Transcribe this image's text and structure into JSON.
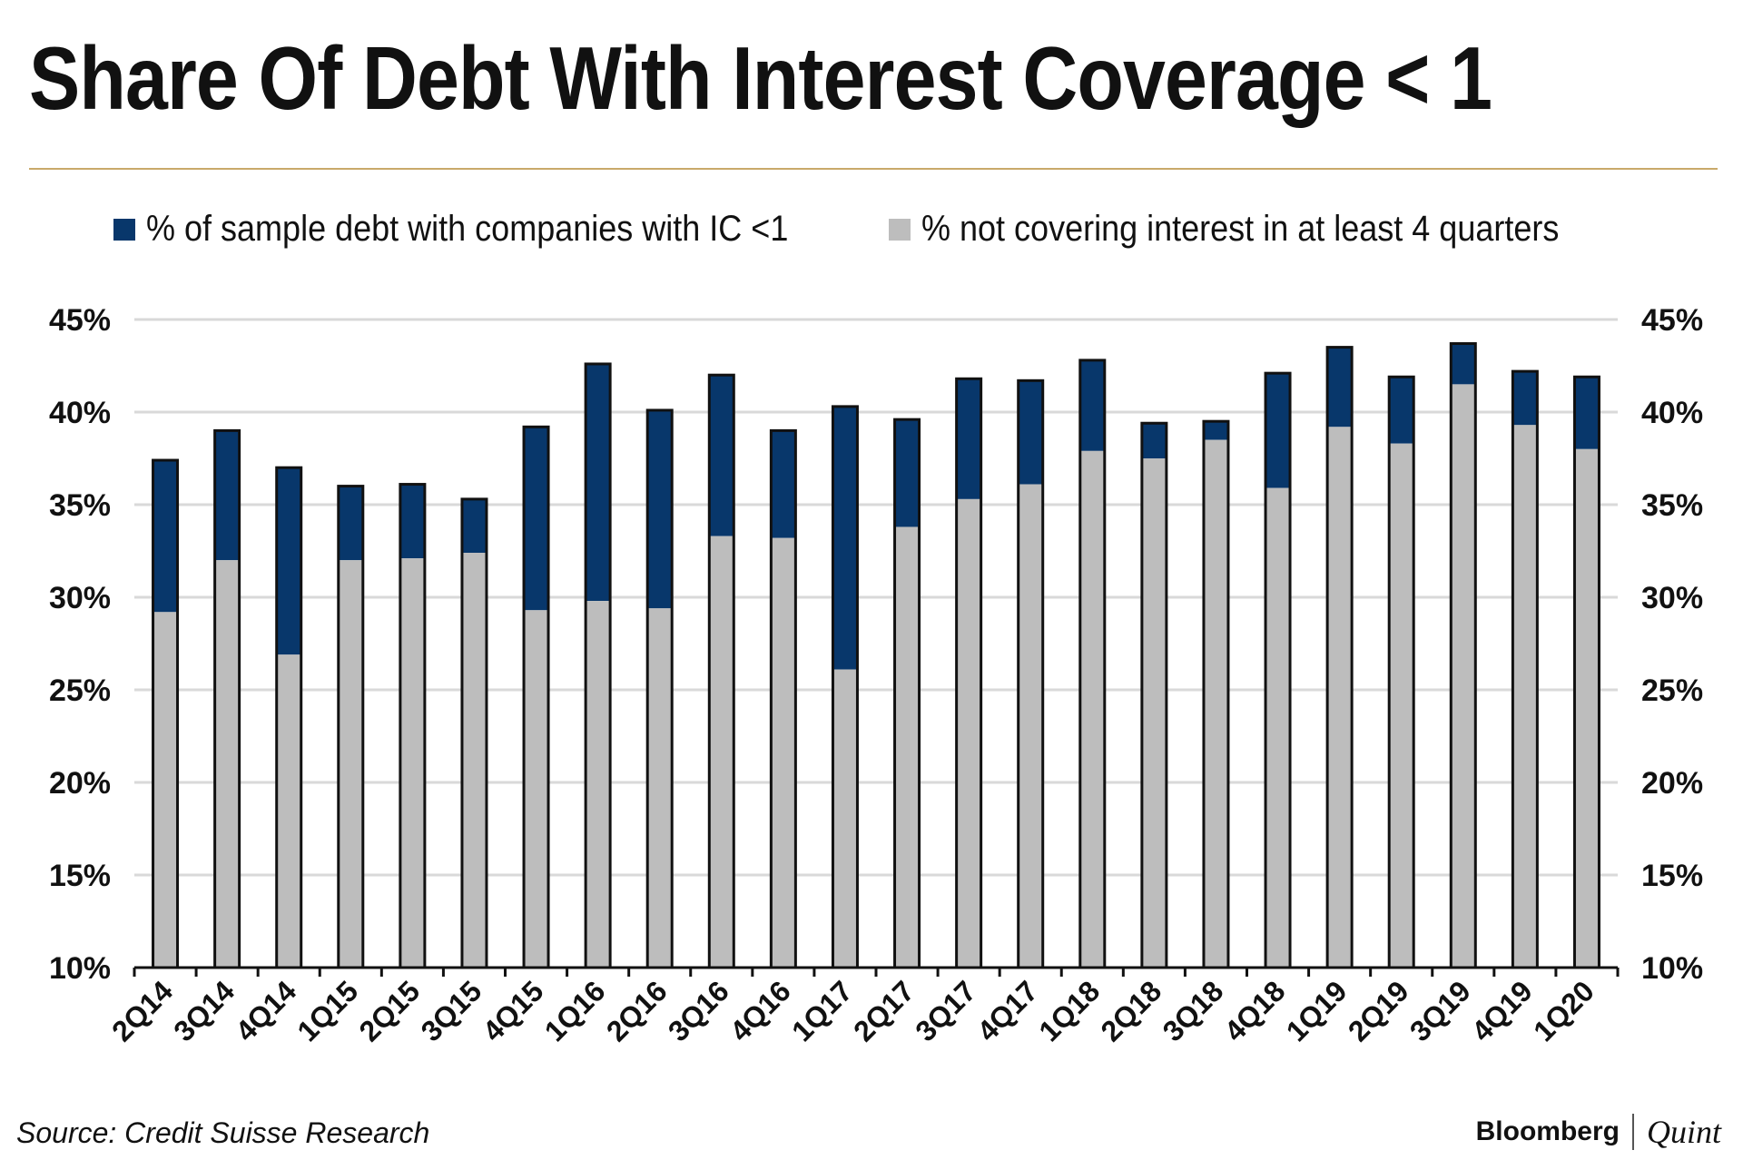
{
  "title": "Share Of Debt With Interest Coverage < 1",
  "source": "Source: Credit Suisse Research",
  "brand": {
    "name": "Bloomberg",
    "sub": "Quint"
  },
  "colors": {
    "total": "#08376b",
    "four_quarters": "#bdbdbd",
    "grid": "#d9d9d9",
    "rule": "#c9a96a"
  },
  "chart_data": {
    "type": "bar",
    "title": "Share Of Debt With Interest Coverage < 1",
    "categories": [
      "2Q14",
      "3Q14",
      "4Q14",
      "1Q15",
      "2Q15",
      "3Q15",
      "4Q15",
      "1Q16",
      "2Q16",
      "3Q16",
      "4Q16",
      "1Q17",
      "2Q17",
      "3Q17",
      "4Q17",
      "1Q18",
      "2Q18",
      "3Q18",
      "4Q18",
      "1Q19",
      "2Q19",
      "3Q19",
      "4Q19",
      "1Q20"
    ],
    "series": [
      {
        "name": "% of sample debt with companies with IC <1",
        "values": [
          37.4,
          39.0,
          37.0,
          36.0,
          36.1,
          35.3,
          39.2,
          42.6,
          40.1,
          42.0,
          39.0,
          40.3,
          39.6,
          41.8,
          41.7,
          42.8,
          39.4,
          39.5,
          42.1,
          43.5,
          41.9,
          43.7,
          42.2,
          41.9
        ]
      },
      {
        "name": "% not covering interest in at least 4 quarters",
        "values": [
          29.2,
          32.0,
          26.9,
          32.0,
          32.1,
          32.4,
          29.3,
          29.8,
          29.4,
          33.3,
          33.2,
          26.1,
          33.8,
          35.3,
          36.1,
          37.9,
          37.5,
          38.5,
          35.9,
          39.2,
          38.3,
          41.5,
          39.3,
          38.0
        ]
      }
    ],
    "ylim": [
      10,
      45
    ],
    "yticks": [
      10,
      15,
      20,
      25,
      30,
      35,
      40,
      45
    ],
    "ytick_labels": [
      "10%",
      "15%",
      "20%",
      "25%",
      "30%",
      "35%",
      "40%",
      "45%"
    ],
    "xlabel": "",
    "ylabel": "",
    "grid": true,
    "legend": "top"
  }
}
